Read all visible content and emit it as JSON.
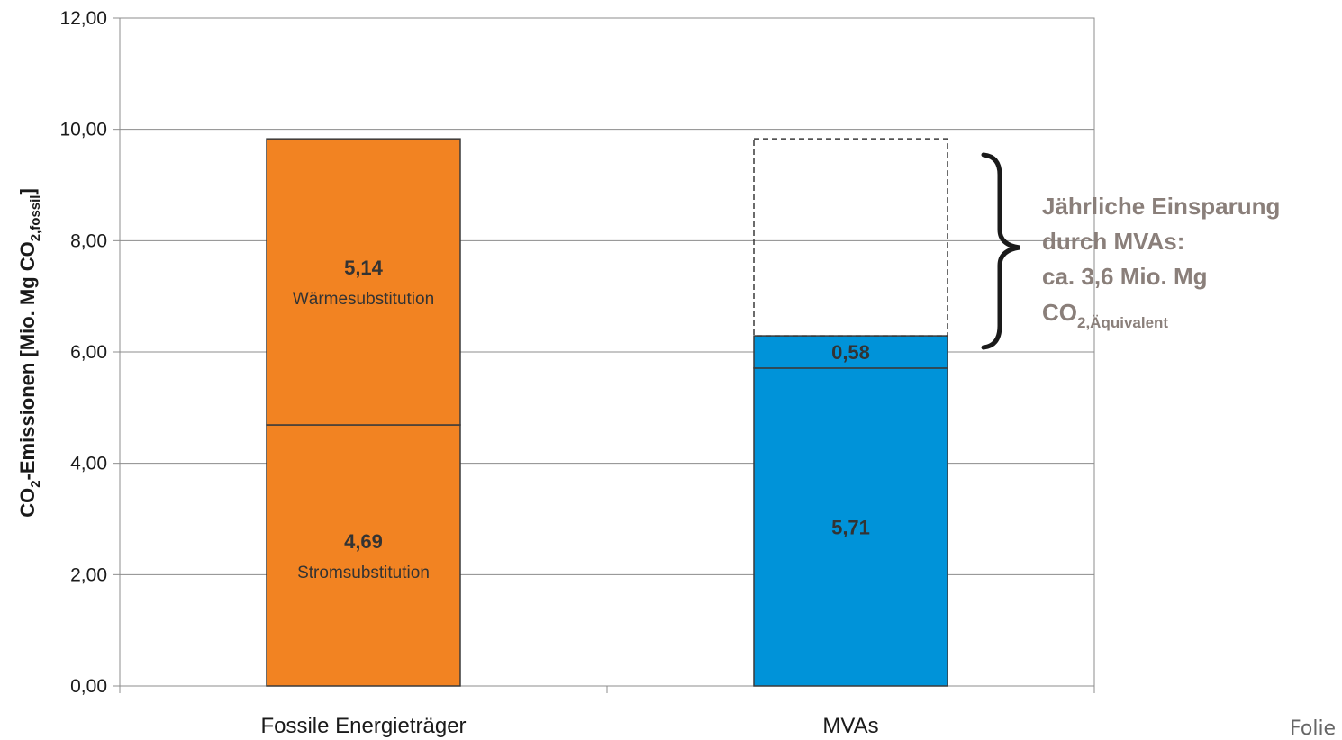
{
  "chart_data": {
    "type": "bar",
    "stacked": true,
    "categories": [
      "Fossile Energieträger",
      "MVAs"
    ],
    "ylim": [
      0,
      12
    ],
    "yticks": [
      "0,00",
      "2,00",
      "4,00",
      "6,00",
      "8,00",
      "10,00",
      "12,00"
    ],
    "ylabel": {
      "main": "CO",
      "sub1": "2",
      "mid": "-Emissionen [Mio. Mg CO",
      "sub2": "2,fossil",
      "end": "]"
    },
    "grid": true,
    "bars": [
      {
        "category": "Fossile Energieträger",
        "color": "#f28322",
        "segments": [
          {
            "value": 4.69,
            "label": "4,69",
            "name": "Stromsubstitution"
          },
          {
            "value": 5.14,
            "label": "5,14",
            "name": "Wärmesubstitution"
          }
        ]
      },
      {
        "category": "MVAs",
        "color": "#0093d9",
        "segments": [
          {
            "value": 5.71,
            "label": "5,71",
            "name": ""
          },
          {
            "value": 0.58,
            "label": "0,58",
            "name": ""
          }
        ],
        "dashed_reference_total": 9.83
      }
    ],
    "annotation": {
      "line1": "Jährliche Einsparung",
      "line2": "durch MVAs:",
      "line3": "ca. 3,6 Mio. Mg",
      "line4_main": "CO",
      "line4_sub": "2,Äquivalent",
      "color": "#8a7f7a"
    }
  },
  "footer": {
    "label": "Folie"
  }
}
